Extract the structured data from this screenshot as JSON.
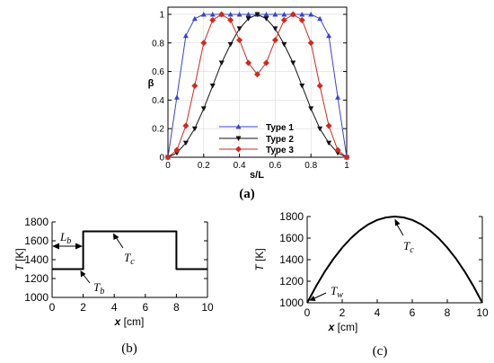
{
  "chart_data": [
    {
      "type": "line",
      "panel": "a",
      "xlabel": "s/L",
      "ylabel": "β",
      "xlim": [
        0,
        1
      ],
      "ylim": [
        0,
        1.05
      ],
      "xticks": [
        "0",
        "0.2",
        "0.4",
        "0.6",
        "0.8",
        "1"
      ],
      "yticks": [
        "0",
        "0.2",
        "0.4",
        "0.6",
        "0.8",
        "1"
      ],
      "x": [
        0,
        0.05,
        0.1,
        0.15,
        0.2,
        0.25,
        0.3,
        0.35,
        0.4,
        0.45,
        0.5,
        0.55,
        0.6,
        0.65,
        0.7,
        0.75,
        0.8,
        0.85,
        0.9,
        0.95,
        1
      ],
      "series": [
        {
          "name": "Type 1",
          "color": "#3a44c8",
          "marker": "triangle-up",
          "values": [
            0,
            0.42,
            0.85,
            0.97,
            1.0,
            1.0,
            1.0,
            1.0,
            1.0,
            1.0,
            1.0,
            1.0,
            1.0,
            1.0,
            1.0,
            1.0,
            1.0,
            0.97,
            0.85,
            0.42,
            0
          ]
        },
        {
          "name": "Type 2",
          "color": "#111111",
          "marker": "triangle-down",
          "values": [
            0,
            0.03,
            0.1,
            0.2,
            0.34,
            0.5,
            0.66,
            0.79,
            0.9,
            0.97,
            1.0,
            0.97,
            0.9,
            0.79,
            0.66,
            0.5,
            0.34,
            0.2,
            0.1,
            0.03,
            0
          ]
        },
        {
          "name": "Type 3",
          "color": "#cc2b22",
          "marker": "diamond",
          "values": [
            0,
            0.05,
            0.22,
            0.5,
            0.8,
            0.96,
            1.0,
            0.96,
            0.82,
            0.66,
            0.58,
            0.66,
            0.82,
            0.96,
            1.0,
            0.96,
            0.8,
            0.5,
            0.22,
            0.05,
            0
          ]
        }
      ],
      "legend": "lower-center",
      "caption": "(a)"
    },
    {
      "type": "line",
      "panel": "b",
      "xlabel_var": "x",
      "xlabel_unit": "[cm]",
      "ylabel_var": "T",
      "ylabel_unit": "[K]",
      "xlim": [
        0,
        10
      ],
      "ylim": [
        1000,
        1800
      ],
      "xticks": [
        "0",
        "2",
        "4",
        "6",
        "8",
        "10"
      ],
      "yticks": [
        "1000",
        "1200",
        "1400",
        "1600",
        "1800"
      ],
      "x": [
        0,
        2,
        2,
        8,
        8,
        10
      ],
      "values": [
        1300,
        1300,
        1700,
        1700,
        1300,
        1300
      ],
      "annotations": {
        "Lb_main": "L",
        "Lb_sub": "b",
        "Tc_main": "T",
        "Tc_sub": "c",
        "Tb_main": "T",
        "Tb_sub": "b"
      },
      "caption": "(b)"
    },
    {
      "type": "line",
      "panel": "c",
      "xlabel_var": "x",
      "xlabel_unit": "[cm]",
      "ylabel_var": "T",
      "ylabel_unit": "[K]",
      "xlim": [
        0,
        10
      ],
      "ylim": [
        1000,
        1800
      ],
      "xticks": [
        "0",
        "2",
        "4",
        "6",
        "8",
        "10"
      ],
      "yticks": [
        "1000",
        "1200",
        "1400",
        "1600",
        "1800"
      ],
      "x": [
        0,
        0.5,
        1,
        1.5,
        2,
        2.5,
        3,
        3.5,
        4,
        4.5,
        5,
        5.5,
        6,
        6.5,
        7,
        7.5,
        8,
        8.5,
        9,
        9.5,
        10
      ],
      "values": [
        1000,
        1152,
        1288,
        1408,
        1512,
        1600,
        1672,
        1728,
        1768,
        1792,
        1800,
        1792,
        1768,
        1728,
        1672,
        1600,
        1512,
        1408,
        1288,
        1152,
        1000
      ],
      "annotations": {
        "Tc_main": "T",
        "Tc_sub": "c",
        "Tw_main": "T",
        "Tw_sub": "w"
      },
      "caption": "(c)"
    }
  ]
}
